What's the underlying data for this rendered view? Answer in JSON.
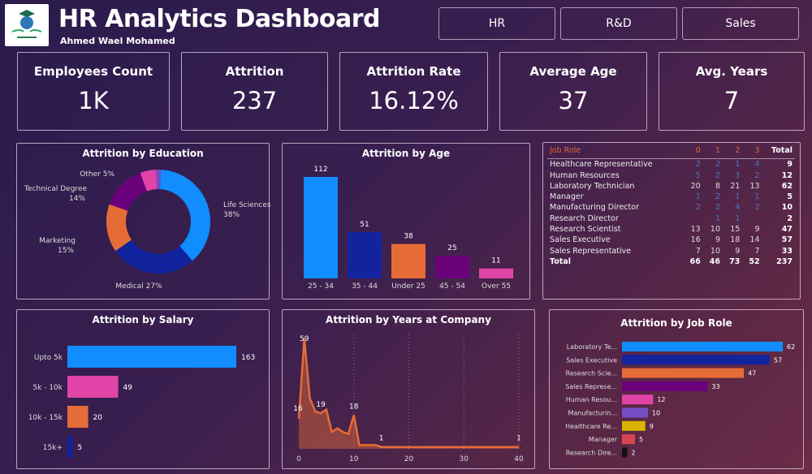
{
  "header": {
    "title": "HR Analytics Dashboard",
    "author": "Ahmed Wael Mohamed",
    "logo_text": "رواد مصر الرقمية"
  },
  "nav": [
    {
      "label": "HR"
    },
    {
      "label": "R&D"
    },
    {
      "label": "Sales"
    }
  ],
  "kpis": [
    {
      "label": "Employees Count",
      "value": "1K"
    },
    {
      "label": "Attrition",
      "value": "237"
    },
    {
      "label": "Attrition Rate",
      "value": "16.12%"
    },
    {
      "label": "Average Age",
      "value": "37"
    },
    {
      "label": "Avg. Years",
      "value": "7"
    }
  ],
  "colors": {
    "blue": "#118DFF",
    "navy": "#12239E",
    "orange": "#E66C37",
    "purple": "#6B007B",
    "pink": "#E044A7",
    "lavender": "#744EC2",
    "yellow": "#D9B300",
    "red": "#D64550",
    "black": "#111111"
  },
  "chart_data": [
    {
      "type": "pie",
      "title": "Attrition by Education",
      "donut": true,
      "slices": [
        {
          "label": "Life Sciences",
          "pct_label": "38%",
          "value": 38,
          "color": "#118DFF"
        },
        {
          "label": "Medical",
          "pct_label": "27%",
          "value": 27,
          "color": "#12239E"
        },
        {
          "label": "Marketing",
          "pct_label": "15%",
          "value": 15,
          "color": "#E66C37"
        },
        {
          "label": "Technical Degree",
          "pct_label": "14%",
          "value": 14,
          "color": "#6B007B"
        },
        {
          "label": "Other",
          "pct_label": "5%",
          "value": 5,
          "color": "#E044A7"
        },
        {
          "label": "",
          "pct_label": "",
          "value": 1.5,
          "color": "#744EC2"
        }
      ]
    },
    {
      "type": "bar",
      "title": "Attrition by Age",
      "categories": [
        "25 - 34",
        "35 - 44",
        "Under 25",
        "45 - 54",
        "Over 55"
      ],
      "values": [
        112,
        51,
        38,
        25,
        11
      ],
      "colors": [
        "#118DFF",
        "#12239E",
        "#E66C37",
        "#6B007B",
        "#E044A7"
      ]
    },
    {
      "type": "table",
      "title": "",
      "columns": [
        "Job Role",
        "0",
        "1",
        "2",
        "3",
        "Total"
      ],
      "rows": [
        [
          "Healthcare Representative",
          "2",
          "2",
          "1",
          "4",
          "9"
        ],
        [
          "Human Resources",
          "5",
          "2",
          "3",
          "2",
          "12"
        ],
        [
          "Laboratory Technician",
          "20",
          "8",
          "21",
          "13",
          "62"
        ],
        [
          "Manager",
          "1",
          "2",
          "1",
          "1",
          "5"
        ],
        [
          "Manufacturing Director",
          "2",
          "2",
          "4",
          "2",
          "10"
        ],
        [
          "Research Director",
          "",
          "1",
          "1",
          "",
          "2"
        ],
        [
          "Research Scientist",
          "13",
          "10",
          "15",
          "9",
          "47"
        ],
        [
          "Sales Executive",
          "16",
          "9",
          "18",
          "14",
          "57"
        ],
        [
          "Sales Representative",
          "7",
          "10",
          "9",
          "7",
          "33"
        ]
      ],
      "total": [
        "Total",
        "66",
        "46",
        "73",
        "52",
        "237"
      ]
    },
    {
      "type": "bar",
      "orientation": "horizontal",
      "title": "Attrition by Salary",
      "categories": [
        "Upto 5k",
        "5k - 10k",
        "10k - 15k",
        "15k+"
      ],
      "values": [
        163,
        49,
        20,
        5
      ],
      "colors": [
        "#118DFF",
        "#E044A7",
        "#E66C37",
        "#12239E"
      ]
    },
    {
      "type": "area",
      "title": "Attrition by Years at Company",
      "x": [
        0,
        1,
        2,
        3,
        4,
        5,
        6,
        7,
        8,
        9,
        10,
        11,
        12,
        13,
        14,
        15,
        16,
        17,
        18,
        19,
        20,
        21,
        22,
        23,
        24,
        25,
        26,
        27,
        28,
        29,
        30,
        31,
        32,
        33,
        34,
        35,
        36,
        37,
        38,
        39,
        40
      ],
      "y": [
        16,
        59,
        27,
        20,
        19,
        21,
        9,
        11,
        9,
        8,
        18,
        2,
        2,
        2,
        2,
        1,
        1,
        1,
        1,
        1,
        1,
        1,
        1,
        1,
        1,
        1,
        1,
        1,
        1,
        1,
        1,
        1,
        1,
        1,
        1,
        1,
        1,
        1,
        1,
        1,
        1
      ],
      "data_labels": [
        {
          "x": 0,
          "text": "16"
        },
        {
          "x": 1,
          "text": "59"
        },
        {
          "x": 4,
          "text": "19"
        },
        {
          "x": 10,
          "text": "18"
        },
        {
          "x": 15,
          "text": "1"
        },
        {
          "x": 40,
          "text": "1"
        }
      ],
      "xticks": [
        "0",
        "10",
        "20",
        "30",
        "40"
      ],
      "xlim": [
        0,
        40
      ],
      "color": "#E66C37"
    },
    {
      "type": "bar",
      "orientation": "horizontal",
      "title": "Attrition by Job Role",
      "categories": [
        "Laboratory Te...",
        "Sales Executive",
        "Research Scie...",
        "Sales Represe...",
        "Human Resou...",
        "Manufacturin...",
        "Healthcare Re...",
        "Manager",
        "Research Dire..."
      ],
      "values": [
        62,
        57,
        47,
        33,
        12,
        10,
        9,
        5,
        2
      ],
      "colors": [
        "#118DFF",
        "#12239E",
        "#E66C37",
        "#6B007B",
        "#E044A7",
        "#744EC2",
        "#D9B300",
        "#D64550",
        "#111111"
      ]
    }
  ]
}
